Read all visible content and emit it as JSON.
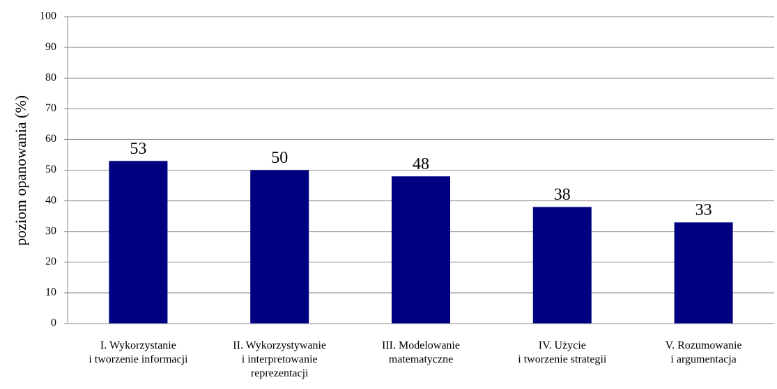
{
  "chart_data": {
    "type": "bar",
    "y_label": "poziom opanowania (%)",
    "categories": [
      "I. Wykorzystanie\ni tworzenie informacji",
      "II. Wykorzystywanie\ni interpretowanie\nreprezentacji",
      "III. Modelowanie\nmatematyczne",
      "IV. Użycie\ni tworzenie strategii",
      "V. Rozumowanie\ni argumentacja"
    ],
    "values": [
      53,
      50,
      48,
      38,
      33
    ],
    "color": "#000080",
    "ylim": [
      0,
      100
    ],
    "yticks": [
      0,
      10,
      20,
      30,
      40,
      50,
      60,
      70,
      80,
      90,
      100
    ],
    "grid": true
  }
}
